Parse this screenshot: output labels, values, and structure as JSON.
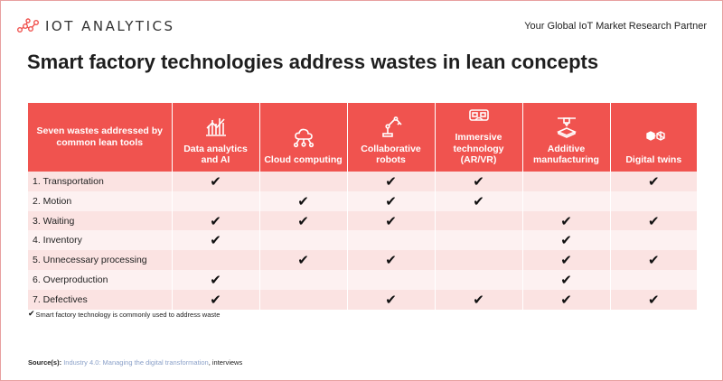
{
  "brand": {
    "logo_text": "IOT ANALYTICS",
    "tagline": "Your Global IoT Market Research Partner",
    "accent": "#f0534f"
  },
  "title": "Smart factory technologies address wastes in lean concepts",
  "table": {
    "corner_header": "Seven wastes addressed by common lean tools",
    "columns": [
      {
        "label": "Data analytics and AI",
        "icon": "analytics-chart-icon"
      },
      {
        "label": "Cloud computing",
        "icon": "cloud-network-icon"
      },
      {
        "label": "Collaborative robots",
        "icon": "robot-arm-icon"
      },
      {
        "label": "Immersive technology (AR/VR)",
        "icon": "vr-headset-icon"
      },
      {
        "label": "Additive manufacturing",
        "icon": "3d-printer-icon"
      },
      {
        "label": "Digital twins",
        "icon": "digital-twin-cube-icon"
      }
    ],
    "check_mark": "✔",
    "rows": [
      {
        "label": "1. Transportation",
        "checks": [
          true,
          false,
          true,
          true,
          false,
          true
        ]
      },
      {
        "label": "2. Motion",
        "checks": [
          false,
          true,
          true,
          true,
          false,
          false
        ]
      },
      {
        "label": "3. Waiting",
        "checks": [
          true,
          true,
          true,
          false,
          true,
          true
        ]
      },
      {
        "label": "4. Inventory",
        "checks": [
          true,
          false,
          false,
          false,
          true,
          false
        ]
      },
      {
        "label": "5. Unnecessary processing",
        "checks": [
          false,
          true,
          true,
          false,
          true,
          true
        ]
      },
      {
        "label": "6. Overproduction",
        "checks": [
          true,
          false,
          false,
          false,
          true,
          false
        ]
      },
      {
        "label": "7. Defectives",
        "checks": [
          true,
          false,
          true,
          true,
          true,
          true
        ]
      }
    ]
  },
  "legend": {
    "check": "✔",
    "text": "Smart factory technology is commonly used to address waste"
  },
  "source": {
    "label": "Source(s):",
    "link_text": "Industry 4.0: Managing the digital transformation",
    "rest": ", interviews"
  }
}
